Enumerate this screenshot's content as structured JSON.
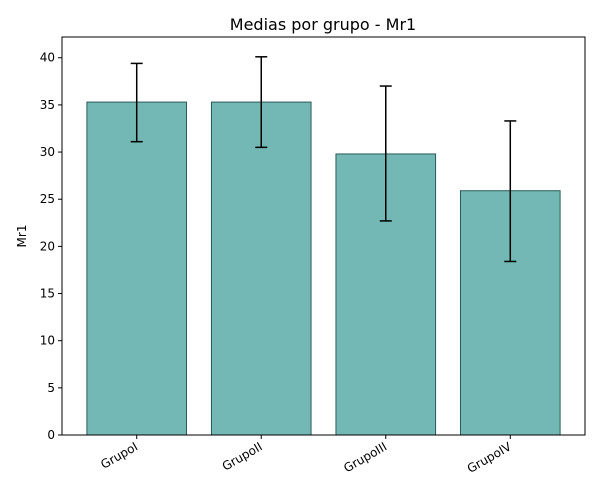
{
  "chart_data": {
    "type": "bar",
    "title": "Medias por grupo - Mr1",
    "xlabel": "",
    "ylabel": "Mr1",
    "categories": [
      "GrupoI",
      "GrupoII",
      "GrupoIII",
      "GrupoIV"
    ],
    "values": [
      35.3,
      35.3,
      29.8,
      25.9
    ],
    "error_bars": {
      "lower": [
        31.1,
        30.5,
        22.7,
        18.4
      ],
      "upper": [
        39.4,
        40.1,
        37.0,
        33.3
      ]
    },
    "ylim": [
      0,
      42.2
    ],
    "yticks": [
      0,
      5,
      10,
      15,
      20,
      25,
      30,
      35,
      40
    ],
    "grid": false,
    "legend": "none",
    "colors": {
      "bar_fill": "#73b8b4",
      "bar_edge": "#2a5a58",
      "error_bar": "#000000",
      "axis": "#000000"
    }
  }
}
